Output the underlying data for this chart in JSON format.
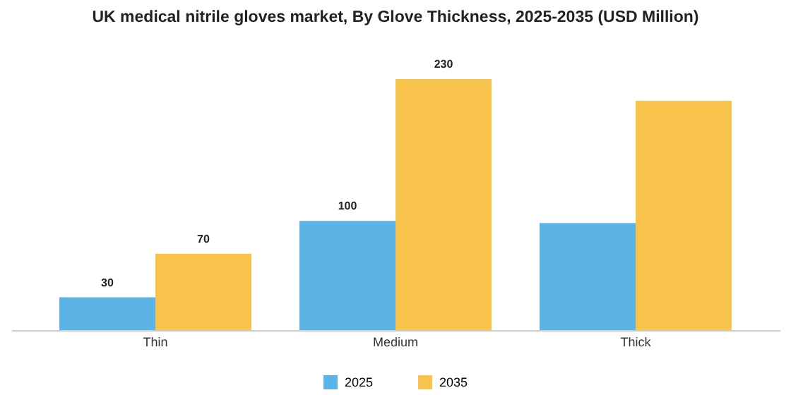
{
  "chart_data": {
    "type": "bar",
    "title": "UK medical nitrile gloves market, By Glove Thickness, 2025-2035 (USD Million)",
    "categories": [
      "Thin",
      "Medium",
      "Thick"
    ],
    "series": [
      {
        "name": "2025",
        "color": "#5bb3e6",
        "values": [
          30,
          100,
          98
        ],
        "value_labels": [
          "30",
          "100",
          null
        ]
      },
      {
        "name": "2035",
        "color": "#f8c44c",
        "values": [
          70,
          230,
          210
        ],
        "value_labels": [
          "70",
          "230",
          null
        ]
      }
    ],
    "legend": "bottom",
    "grid": false
  }
}
